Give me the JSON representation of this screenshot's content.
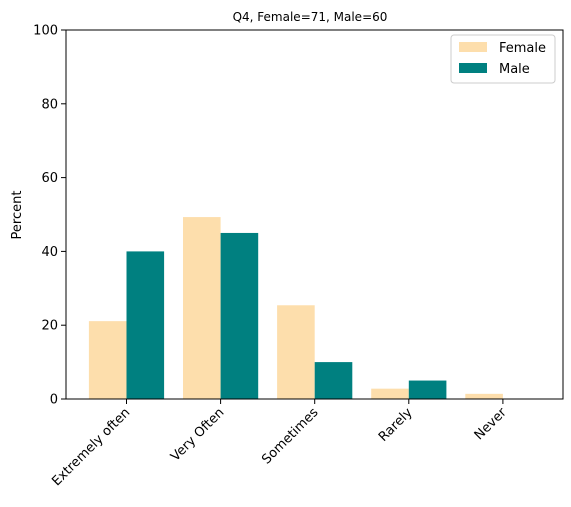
{
  "chart_data": {
    "type": "bar",
    "title": "Q4, Female=71, Male=60",
    "xlabel": "",
    "ylabel": "Percent",
    "categories": [
      "Extremely often",
      "Very Often",
      "Sometimes",
      "Rarely",
      "Never"
    ],
    "series": [
      {
        "name": "Female",
        "color": "#fddeac",
        "values": [
          21.1,
          49.3,
          25.4,
          2.8,
          1.4
        ]
      },
      {
        "name": "Male",
        "color": "#008080",
        "values": [
          40.0,
          45.0,
          10.0,
          5.0,
          0.0
        ]
      }
    ],
    "ylim": [
      0,
      100
    ],
    "yticks": [
      0,
      20,
      40,
      60,
      80,
      100
    ],
    "grid": false,
    "legend_position": "top-right"
  }
}
